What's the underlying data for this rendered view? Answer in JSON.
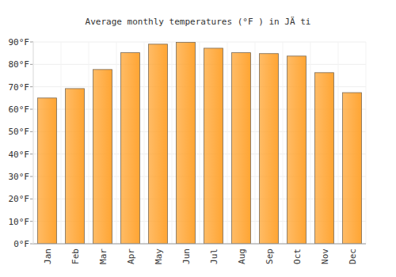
{
  "chart_data": {
    "type": "bar",
    "title": "Average monthly temperatures (°F ) in JÄ ti",
    "categories": [
      "Jan",
      "Feb",
      "Mar",
      "Apr",
      "May",
      "Jun",
      "Jul",
      "Aug",
      "Sep",
      "Oct",
      "Nov",
      "Dec"
    ],
    "values": [
      65,
      69.2,
      77.7,
      85.2,
      89,
      89.8,
      87.2,
      85.2,
      84.8,
      83.7,
      76.3,
      67.4
    ],
    "color": "#ffa533",
    "ylim": [
      0,
      90
    ],
    "yticks": [
      {
        "value": 0,
        "label": "0°F"
      },
      {
        "value": 10,
        "label": "10°F"
      },
      {
        "value": 20,
        "label": "20°F"
      },
      {
        "value": 30,
        "label": "30°F"
      },
      {
        "value": 40,
        "label": "40°F"
      },
      {
        "value": 50,
        "label": "50°F"
      },
      {
        "value": 60,
        "label": "60°F"
      },
      {
        "value": 70,
        "label": "70°F"
      },
      {
        "value": 80,
        "label": "80°F"
      },
      {
        "value": 90,
        "label": "90°F"
      }
    ],
    "grid": true
  }
}
